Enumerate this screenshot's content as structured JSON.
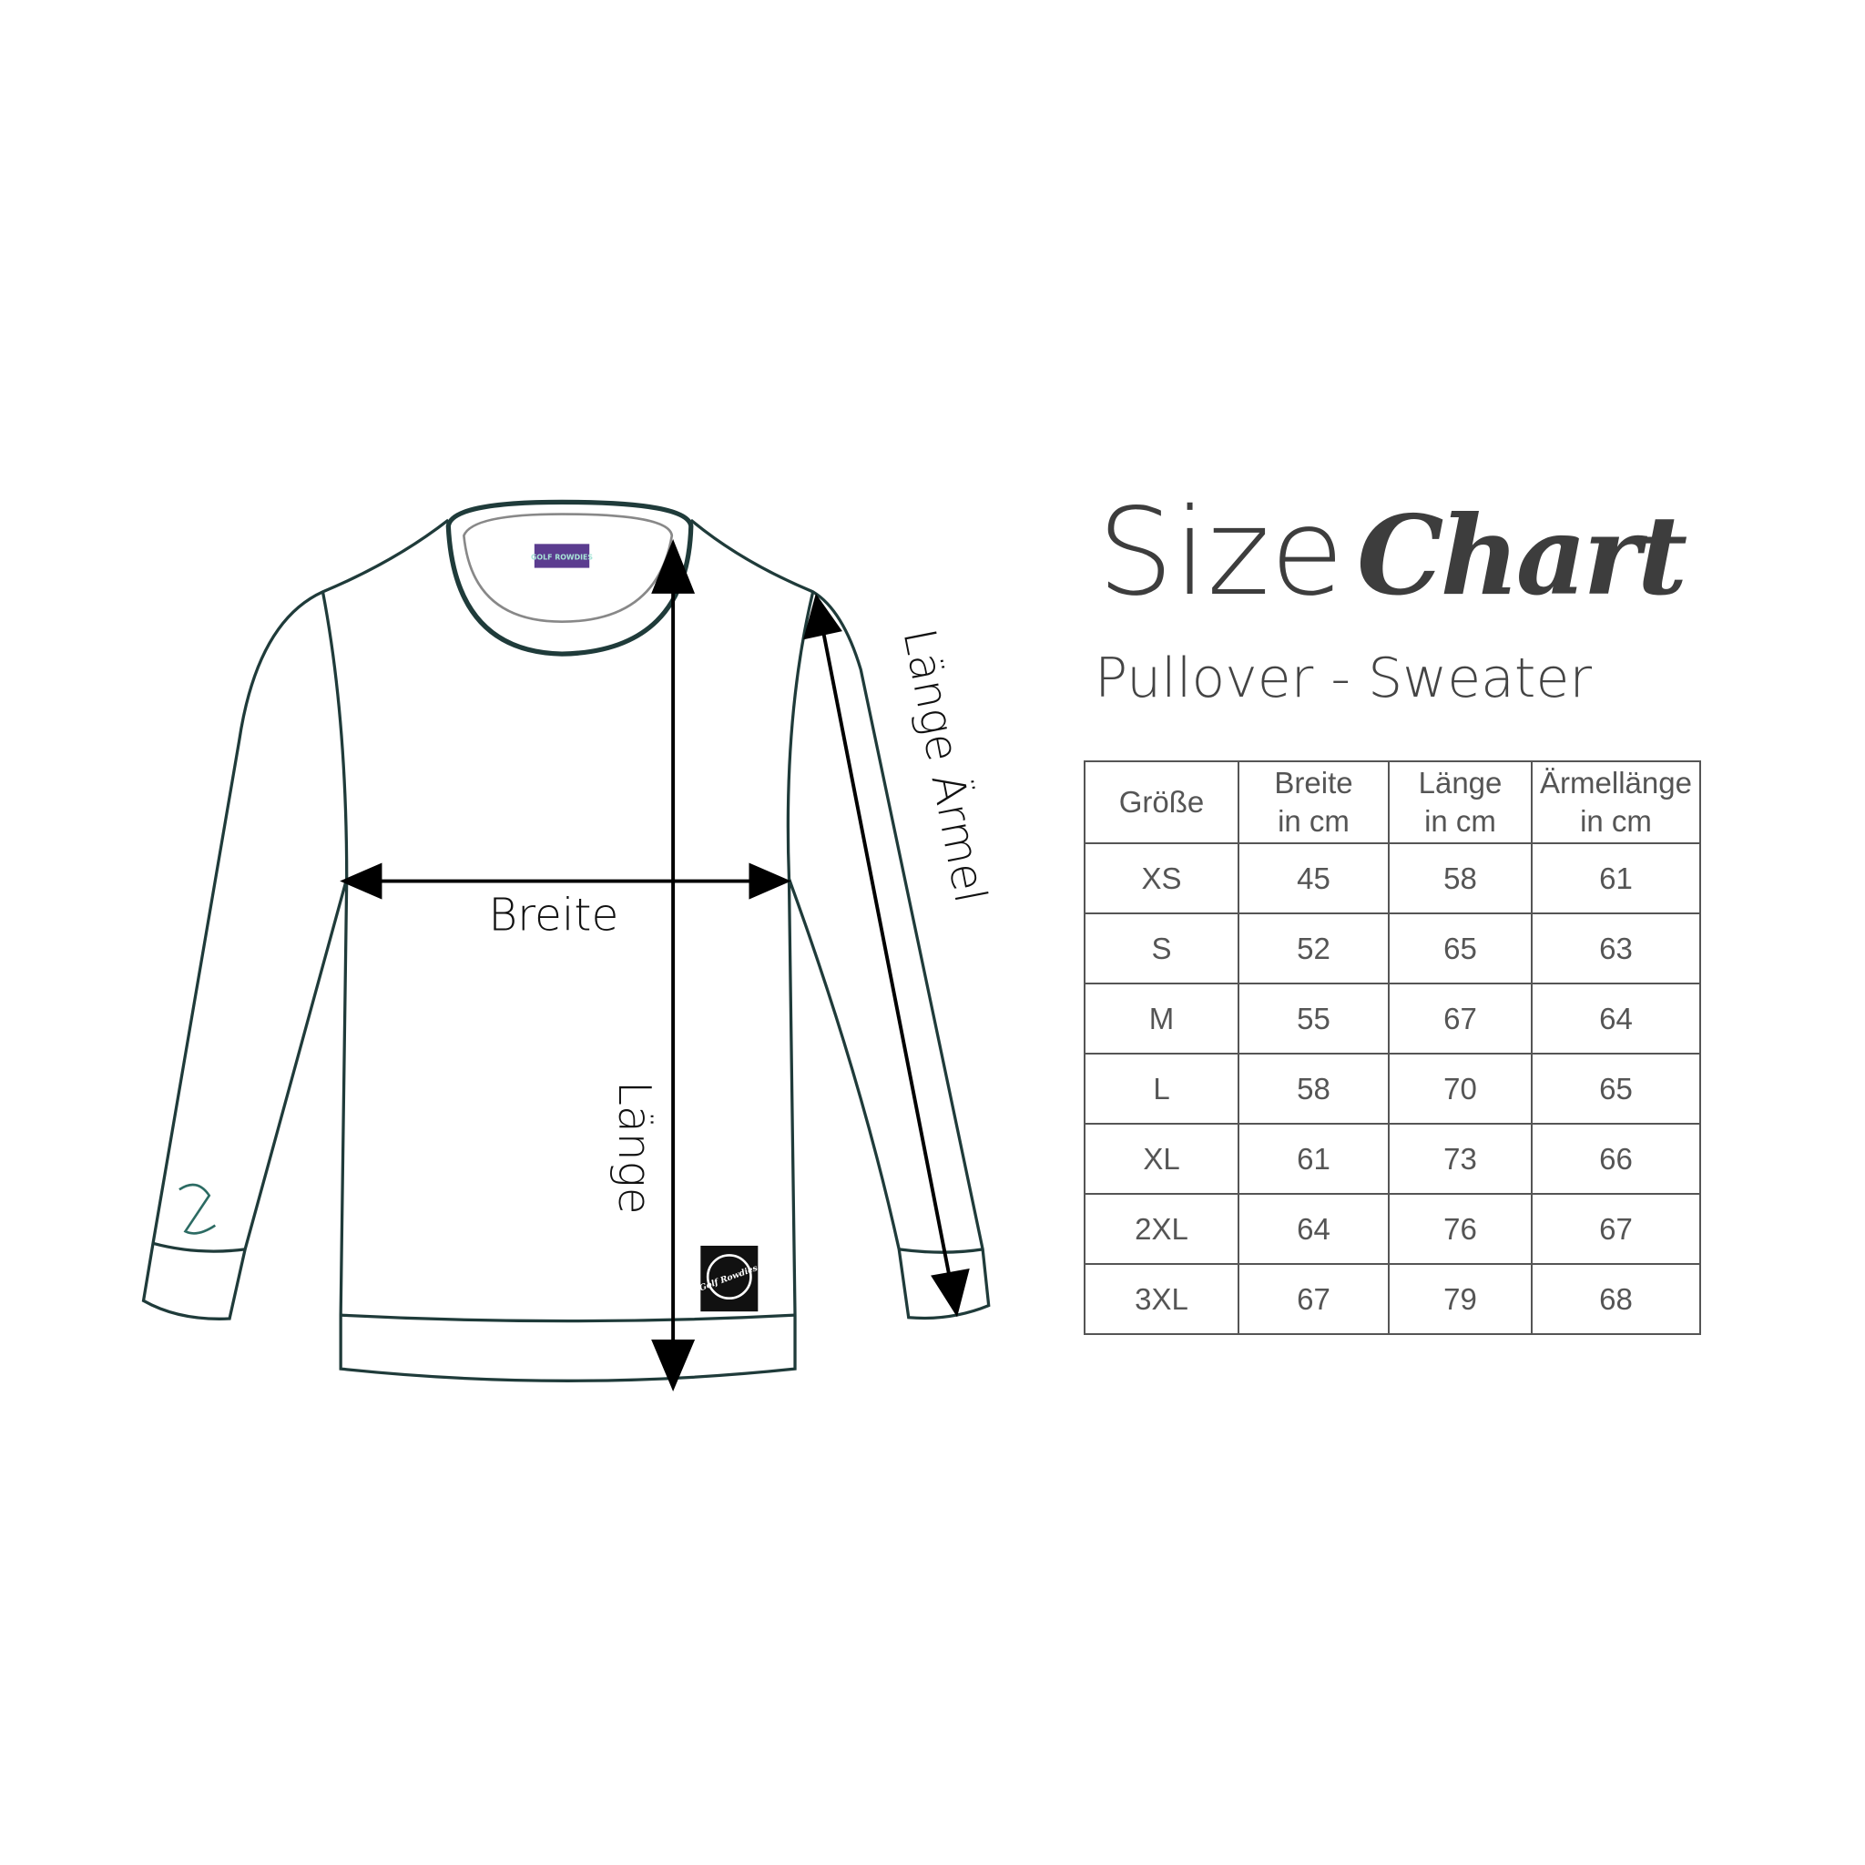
{
  "title": {
    "word1": "Size",
    "word2": "Chart",
    "subtitle": "Pullover - Sweater"
  },
  "diagram": {
    "width_label": "Breite",
    "length_label": "Länge",
    "sleeve_label": "Länge Ärmel",
    "neck_label": "GOLF ROWDIES",
    "patch_label": "Golf Rowdies"
  },
  "colors": {
    "outline": "#1f3b3a",
    "text": "#444444",
    "label": "#5b3c8f"
  },
  "table": {
    "headers": [
      [
        "Größe"
      ],
      [
        "Breite",
        "in cm"
      ],
      [
        "Länge",
        "in cm"
      ],
      [
        "Ärmellänge",
        "in cm"
      ]
    ],
    "rows": [
      [
        "XS",
        "45",
        "58",
        "61"
      ],
      [
        "S",
        "52",
        "65",
        "63"
      ],
      [
        "M",
        "55",
        "67",
        "64"
      ],
      [
        "L",
        "58",
        "70",
        "65"
      ],
      [
        "XL",
        "61",
        "73",
        "66"
      ],
      [
        "2XL",
        "64",
        "76",
        "67"
      ],
      [
        "3XL",
        "67",
        "79",
        "68"
      ]
    ]
  }
}
